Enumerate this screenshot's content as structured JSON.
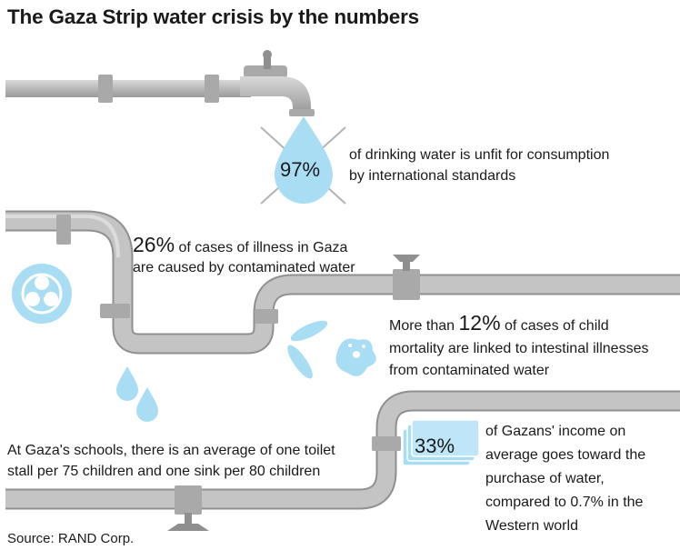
{
  "title": "The Gaza Strip water crisis by the numbers",
  "stats": {
    "water": {
      "value": "97%",
      "line1": "of drinking water is unfit for consumption",
      "line2": "by international standards"
    },
    "illness": {
      "value": "26%",
      "line1_rest": " of cases of illness in Gaza",
      "line2": "are caused by contaminated water"
    },
    "mortality": {
      "prefix": "More than ",
      "value": "12%",
      "line1_rest": " of cases of child",
      "line2": "mortality are linked to intestinal illnesses",
      "line3": "from contaminated water"
    },
    "schools": {
      "line1": "At Gaza's schools, there is an average of one toilet",
      "line2": "stall per 75 children and one sink per 80 children"
    },
    "income": {
      "value": "33%",
      "line1": "of Gazans' income on",
      "line2": "average goes toward the",
      "line3": "purchase of water,",
      "line4": "compared to 0.7% in the",
      "line5": "Western world"
    }
  },
  "source": "Source: RAND Corp.",
  "colors": {
    "pipe": "#bcbcbc",
    "pipe_dark": "#8f8f8f",
    "accent": "#a9ddf4",
    "text": "#1a1a1a"
  }
}
